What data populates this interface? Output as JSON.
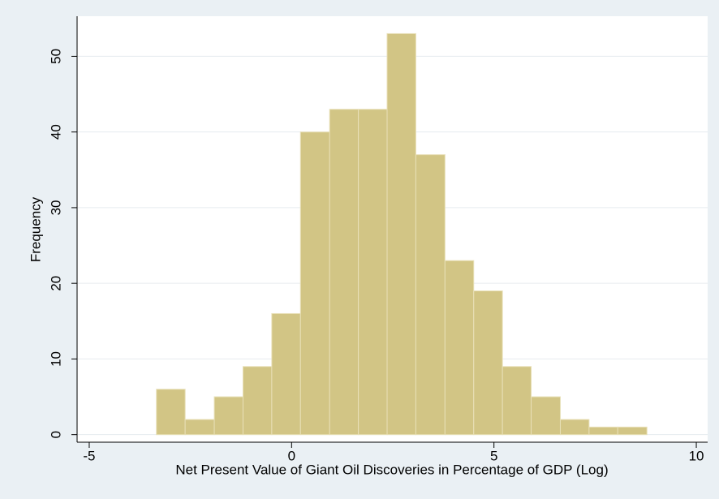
{
  "chart_data": {
    "type": "histogram",
    "x_label": "Net Present Value of Giant Oil Discoveries in Percentage of GDP (Log)",
    "y_label": "Frequency",
    "bins": [
      -3.34,
      -2.63,
      -1.91,
      -1.2,
      -0.49,
      0.22,
      0.94,
      1.65,
      2.36,
      3.07,
      3.79,
      4.5,
      5.21,
      5.92,
      6.64,
      7.35,
      8.06,
      8.78
    ],
    "values": [
      6,
      2,
      5,
      9,
      16,
      40,
      43,
      43,
      53,
      37,
      23,
      19,
      9,
      5,
      2,
      1,
      1
    ],
    "color": "#d2c585",
    "xlim": [
      -5.3,
      10.28
    ],
    "ylim": [
      -1,
      55.3
    ],
    "xticks": [
      -5,
      0,
      5,
      10
    ],
    "yticks": [
      0,
      10,
      20,
      30,
      40,
      50
    ],
    "grid": true
  }
}
